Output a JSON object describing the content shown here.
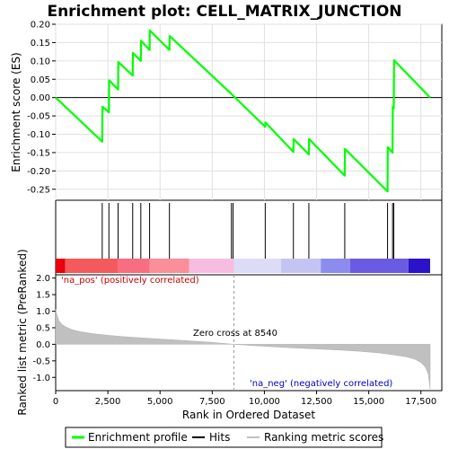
{
  "chart_data": {
    "type": "line",
    "title": "Enrichment plot: CELL_MATRIX_JUNCTION",
    "top_panel": {
      "ylabel": "Enrichment score (ES)",
      "ylim": [
        -0.28,
        0.2
      ],
      "yticks": [
        "0.20",
        "0.15",
        "0.10",
        "0.05",
        "0.00",
        "-0.05",
        "-0.10",
        "-0.15",
        "-0.20",
        "-0.25"
      ],
      "ytick_values": [
        0.2,
        0.15,
        0.1,
        0.05,
        0.0,
        -0.05,
        -0.1,
        -0.15,
        -0.2,
        -0.25
      ],
      "series": [
        {
          "name": "Enrichment profile",
          "color": "#00ff00",
          "x": [
            0,
            2230,
            2240,
            2550,
            2560,
            2990,
            3000,
            3690,
            3700,
            4080,
            4090,
            4500,
            4510,
            5450,
            5460,
            8420,
            8540,
            10040,
            10050,
            11390,
            11400,
            12130,
            12140,
            13850,
            13860,
            15900,
            15910,
            16140,
            16150,
            16200,
            16210,
            17940
          ],
          "y": [
            0.0,
            -0.12,
            -0.025,
            -0.04,
            0.047,
            0.022,
            0.097,
            0.06,
            0.122,
            0.1,
            0.155,
            0.13,
            0.183,
            0.13,
            0.168,
            0.01,
            0.003,
            -0.08,
            -0.068,
            -0.148,
            -0.113,
            -0.155,
            -0.113,
            -0.213,
            -0.14,
            -0.256,
            -0.135,
            -0.15,
            -0.025,
            -0.03,
            0.102,
            0.0
          ]
        }
      ]
    },
    "hits": [
      2230,
      2550,
      2990,
      3690,
      4080,
      4500,
      5450,
      8420,
      8500,
      10040,
      11390,
      12130,
      13850,
      15900,
      16140,
      16200
    ],
    "bottom_panel": {
      "ylabel": "Ranked list metric (PreRanked)",
      "xlabel": "Rank in Ordered Dataset",
      "ylim": [
        -1.4,
        2.1
      ],
      "yticks": [
        "2.0",
        "1.5",
        "1.0",
        "0.5",
        "0.0",
        "-0.5",
        "-1.0"
      ],
      "ytick_values": [
        2.0,
        1.5,
        1.0,
        0.5,
        0.0,
        -0.5,
        -1.0
      ],
      "metric_x": [
        0,
        60,
        150,
        300,
        500,
        800,
        1200,
        1800,
        2500,
        3500,
        4500,
        5500,
        6500,
        7500,
        8540,
        9500,
        10500,
        11500,
        12500,
        13500,
        14500,
        15500,
        16200,
        16800,
        17200,
        17500,
        17700,
        17850,
        17940
      ],
      "metric_y": [
        1.05,
        0.9,
        0.72,
        0.6,
        0.52,
        0.44,
        0.38,
        0.32,
        0.27,
        0.22,
        0.18,
        0.14,
        0.1,
        0.06,
        0.0,
        -0.04,
        -0.08,
        -0.11,
        -0.14,
        -0.17,
        -0.21,
        -0.26,
        -0.32,
        -0.38,
        -0.45,
        -0.55,
        -0.68,
        -0.9,
        -1.35
      ],
      "zero_cross_label": "Zero cross at 8540",
      "zero_cross_x": 8540,
      "pos_label": "'na_pos' (positively correlated)",
      "neg_label": "'na_neg' (negatively correlated)"
    },
    "xlim": [
      0,
      18500
    ],
    "xticks": [
      "0",
      "2,500",
      "5,000",
      "7,500",
      "10,000",
      "12,500",
      "15,000",
      "17,500"
    ],
    "xtick_values": [
      0,
      2500,
      5000,
      7500,
      10000,
      12500,
      15000,
      17500
    ],
    "legend": {
      "placement": "bottom",
      "items": [
        "Enrichment profile",
        "Hits",
        "Ranking metric scores"
      ]
    },
    "colors": {
      "profile": "#00ff00",
      "hits": "#000000",
      "metric": "#c0c0c0",
      "pos_text": "#cc0000",
      "neg_text": "#0000cc",
      "zero_text": "#000000"
    },
    "colorbar_segments": [
      {
        "to": 450,
        "color": "#e8000b"
      },
      {
        "to": 3000,
        "color": "#f45a5c"
      },
      {
        "to": 4500,
        "color": "#f86d7f"
      },
      {
        "to": 6400,
        "color": "#fa8e99"
      },
      {
        "to": 8540,
        "color": "#f7bde0"
      },
      {
        "to": 10800,
        "color": "#dcdcf7"
      },
      {
        "to": 12700,
        "color": "#c4c4f2"
      },
      {
        "to": 14100,
        "color": "#8c8cee"
      },
      {
        "to": 16900,
        "color": "#6a5be3"
      },
      {
        "to": 17940,
        "color": "#2a13c8"
      }
    ]
  }
}
